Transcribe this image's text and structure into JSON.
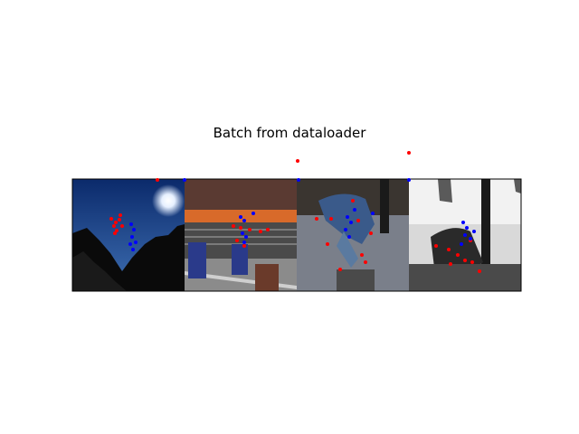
{
  "figure": {
    "title": "Batch from dataloader"
  },
  "colors": {
    "keypoint_red": "#ff0000",
    "keypoint_blue": "#0000ff",
    "frame": "#000000"
  },
  "panels": [
    {
      "name": "silhouette-on-rocks-panel",
      "scene": "night sky with bright moon, silhouetted rocks"
    },
    {
      "name": "gymnastics-arena-panel",
      "scene": "gymnast on balance beam with audience"
    },
    {
      "name": "street-jump-panel",
      "scene": "person jumping over bollard on street"
    },
    {
      "name": "bw-flag-panel",
      "scene": "black and white photo of person under flags"
    }
  ]
}
